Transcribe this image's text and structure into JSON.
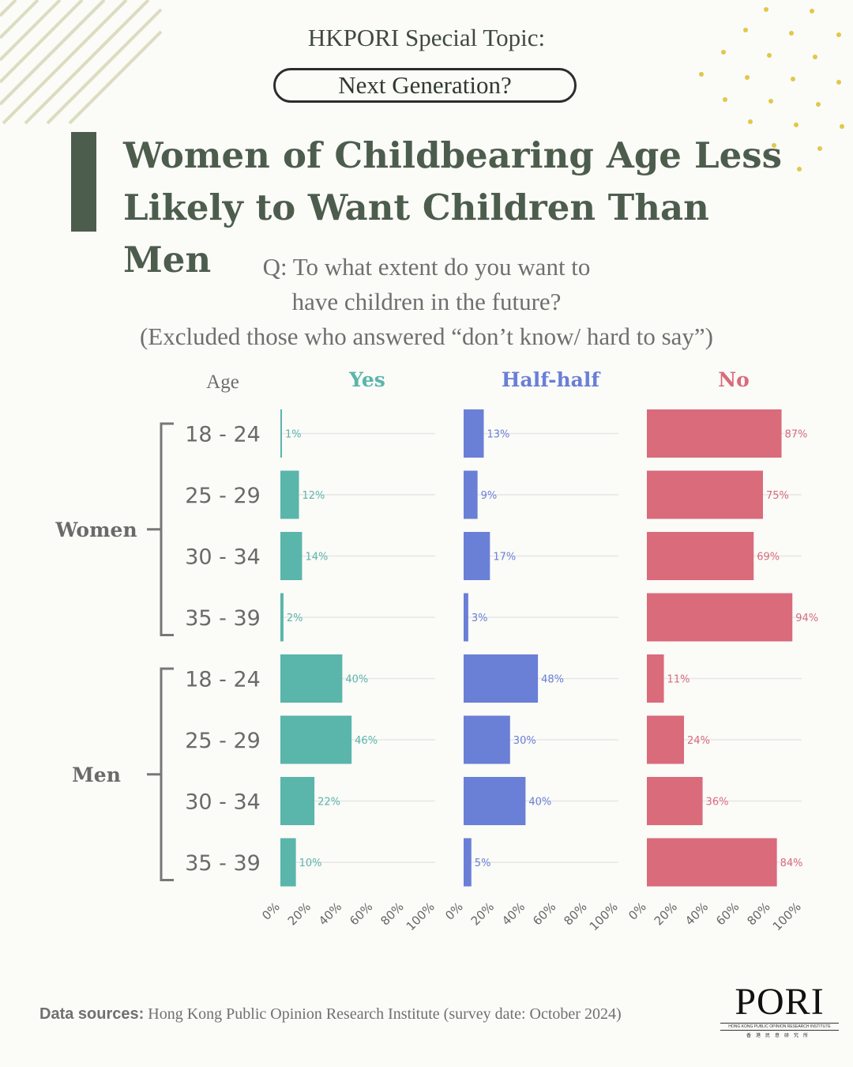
{
  "header": {
    "series": "HKPORI Special Topic:",
    "pill": "Next Generation?",
    "title_line1": [
      "Women",
      "of",
      "Childbearing",
      "Age",
      "Less"
    ],
    "title_line2": "Likely to Want Children Than Men"
  },
  "question": {
    "line1": "Q: To what extent do you want to",
    "line2": "have children in the future?",
    "line3": "(Excluded those who answered “don’t know/ hard to say”)"
  },
  "source": {
    "label": "Data sources:",
    "text": " Hong Kong Public Opinion Research Institute (survey date: October 2024)"
  },
  "logo": {
    "word": "PORI",
    "sub": "HONG KONG PUBLIC OPINION RESEARCH INSTITUTE",
    "cn": "香港民意研究所"
  },
  "chart_data": {
    "type": "bar",
    "orientation": "horizontal",
    "row_header": "Age",
    "groups": [
      {
        "name": "Women",
        "categories": [
          "18 - 24",
          "25 - 29",
          "30 - 34",
          "35 - 39"
        ]
      },
      {
        "name": "Men",
        "categories": [
          "18 - 24",
          "25 - 29",
          "30 - 34",
          "35 - 39"
        ]
      }
    ],
    "xlim": [
      0,
      100
    ],
    "x_ticks": [
      "0%",
      "20%",
      "40%",
      "60%",
      "80%",
      "100%"
    ],
    "grid": true,
    "value_suffix": "%",
    "series": [
      {
        "name": "Yes",
        "color": "#5ab5aa",
        "values": [
          1,
          12,
          14,
          2,
          40,
          46,
          22,
          10
        ]
      },
      {
        "name": "Half-half",
        "color": "#6a7fd6",
        "values": [
          13,
          9,
          17,
          3,
          48,
          30,
          40,
          5
        ]
      },
      {
        "name": "No",
        "color": "#d96b7b",
        "values": [
          87,
          75,
          69,
          94,
          11,
          24,
          36,
          84
        ]
      }
    ]
  }
}
